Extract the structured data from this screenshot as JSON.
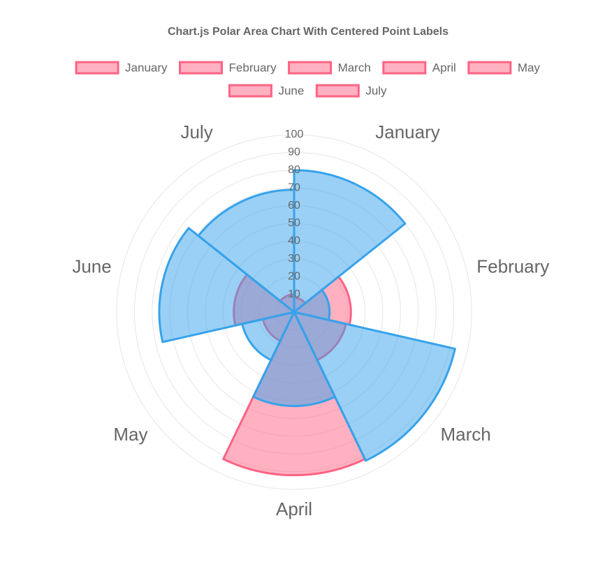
{
  "chart_data": {
    "type": "polarArea",
    "title": "Chart.js Polar Area Chart With Centered Point Labels",
    "categories": [
      "January",
      "February",
      "March",
      "April",
      "May",
      "June",
      "July"
    ],
    "series": [
      {
        "color": "#ff6384",
        "values": [
          8,
          32,
          30,
          92,
          18,
          34,
          10
        ]
      },
      {
        "color": "#36a2eb",
        "values": [
          80,
          20,
          93,
          53,
          30,
          76,
          69
        ]
      }
    ],
    "rlim": [
      0,
      100
    ],
    "rticks": [
      10,
      20,
      30,
      40,
      50,
      60,
      70,
      80,
      90,
      100
    ],
    "grid": true
  }
}
